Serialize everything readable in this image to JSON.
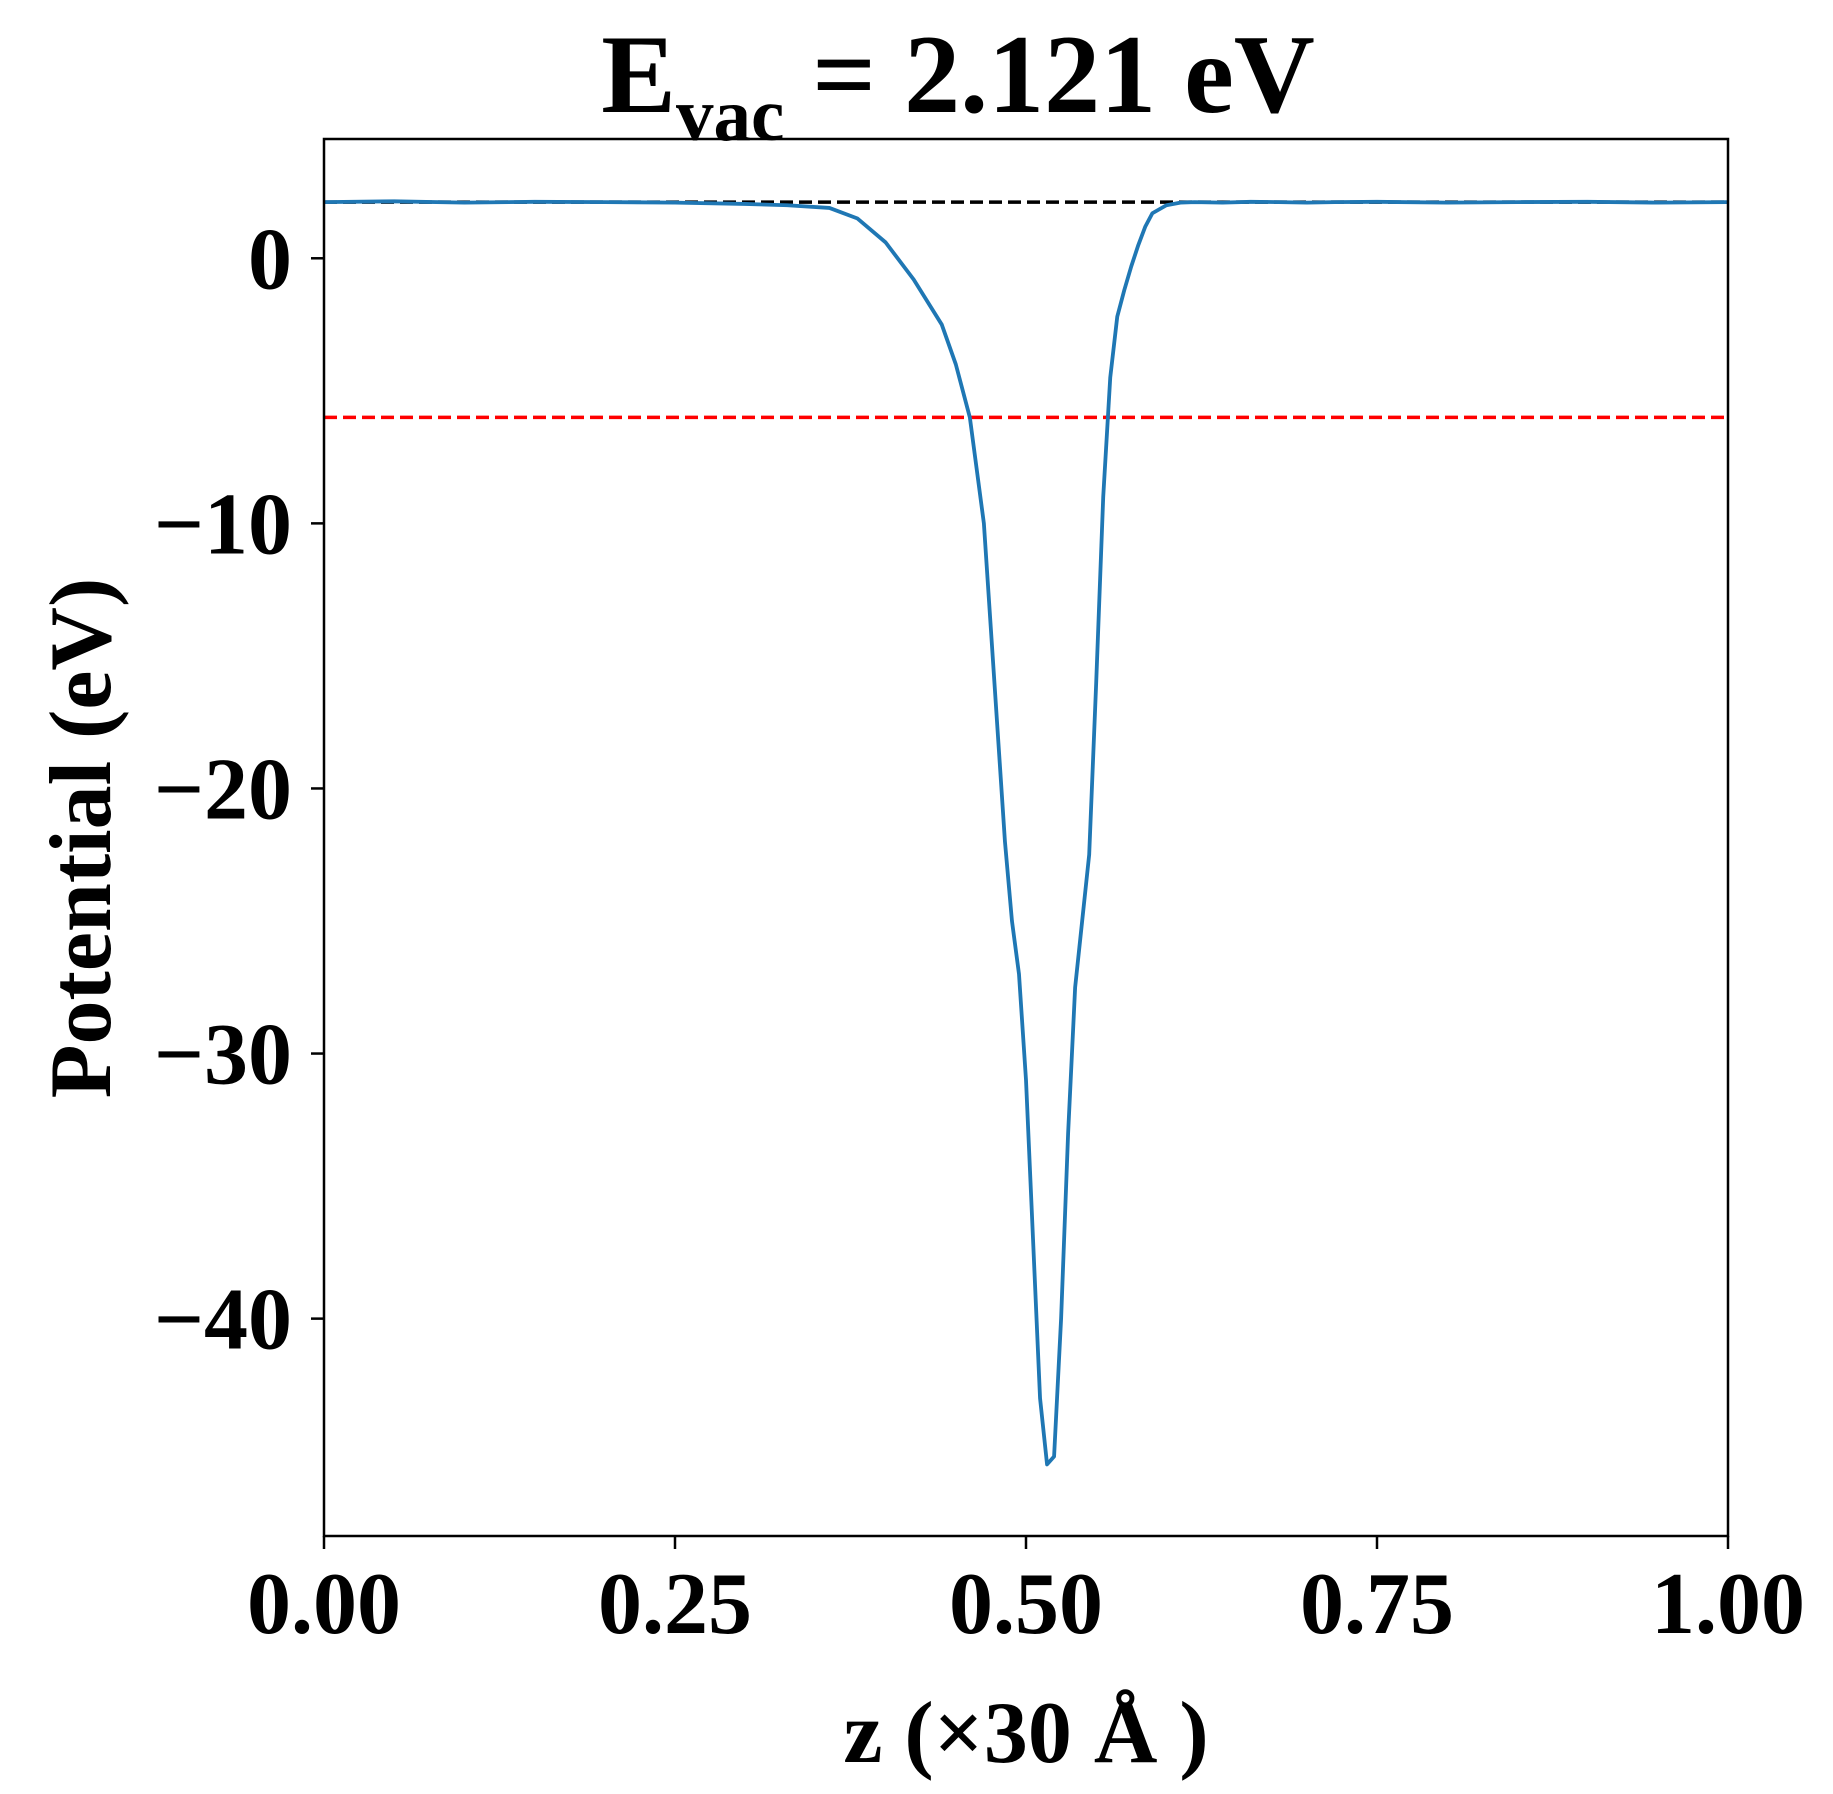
{
  "chart_data": {
    "type": "line",
    "title": {
      "main": "E",
      "subscript": "vac",
      "rest": " = 2.121 eV"
    },
    "xlabel": "z (×30 Å )",
    "ylabel": "Potential (eV)",
    "xlim": [
      0.0,
      1.0
    ],
    "ylim": [
      -48.2,
      4.5
    ],
    "xticks": [
      0.0,
      0.25,
      0.5,
      0.75,
      1.0
    ],
    "xtick_labels": [
      "0.00",
      "0.25",
      "0.50",
      "0.75",
      "1.00"
    ],
    "yticks": [
      0,
      -10,
      -20,
      -30,
      -40
    ],
    "ytick_labels": [
      "0",
      "−10",
      "−20",
      "−30",
      "−40"
    ],
    "grid": false,
    "hlines": [
      {
        "name": "vacuum-level",
        "y": 2.121,
        "color": "#000000",
        "style": "dashed"
      },
      {
        "name": "fermi-level",
        "y": -6.0,
        "color": "#ff0000",
        "style": "dashed"
      }
    ],
    "series": [
      {
        "name": "planar-averaged-potential",
        "color": "#1f77b4",
        "x": [
          0.0,
          0.05,
          0.1,
          0.15,
          0.2,
          0.25,
          0.3,
          0.33,
          0.36,
          0.38,
          0.4,
          0.42,
          0.44,
          0.45,
          0.46,
          0.47,
          0.475,
          0.48,
          0.485,
          0.49,
          0.495,
          0.5,
          0.505,
          0.51,
          0.515,
          0.52,
          0.525,
          0.53,
          0.535,
          0.54,
          0.545,
          0.55,
          0.555,
          0.56,
          0.565,
          0.57,
          0.575,
          0.58,
          0.585,
          0.59,
          0.6,
          0.61,
          0.62,
          0.64,
          0.66,
          0.68,
          0.7,
          0.72,
          0.75,
          0.8,
          0.85,
          0.9,
          0.95,
          1.0
        ],
        "y": [
          2.12,
          2.15,
          2.1,
          2.13,
          2.12,
          2.1,
          2.05,
          2.0,
          1.9,
          1.5,
          0.6,
          -0.8,
          -2.5,
          -4.0,
          -6.0,
          -10.0,
          -14.0,
          -18.0,
          -22.0,
          -25.0,
          -27.0,
          -31.0,
          -37.0,
          -43.0,
          -45.5,
          -45.2,
          -40.0,
          -33.0,
          -27.5,
          -25.0,
          -22.5,
          -16.0,
          -9.0,
          -4.5,
          -2.2,
          -1.2,
          -0.3,
          0.5,
          1.2,
          1.7,
          2.0,
          2.1,
          2.12,
          2.1,
          2.13,
          2.12,
          2.1,
          2.12,
          2.13,
          2.1,
          2.12,
          2.13,
          2.1,
          2.12
        ]
      }
    ]
  }
}
